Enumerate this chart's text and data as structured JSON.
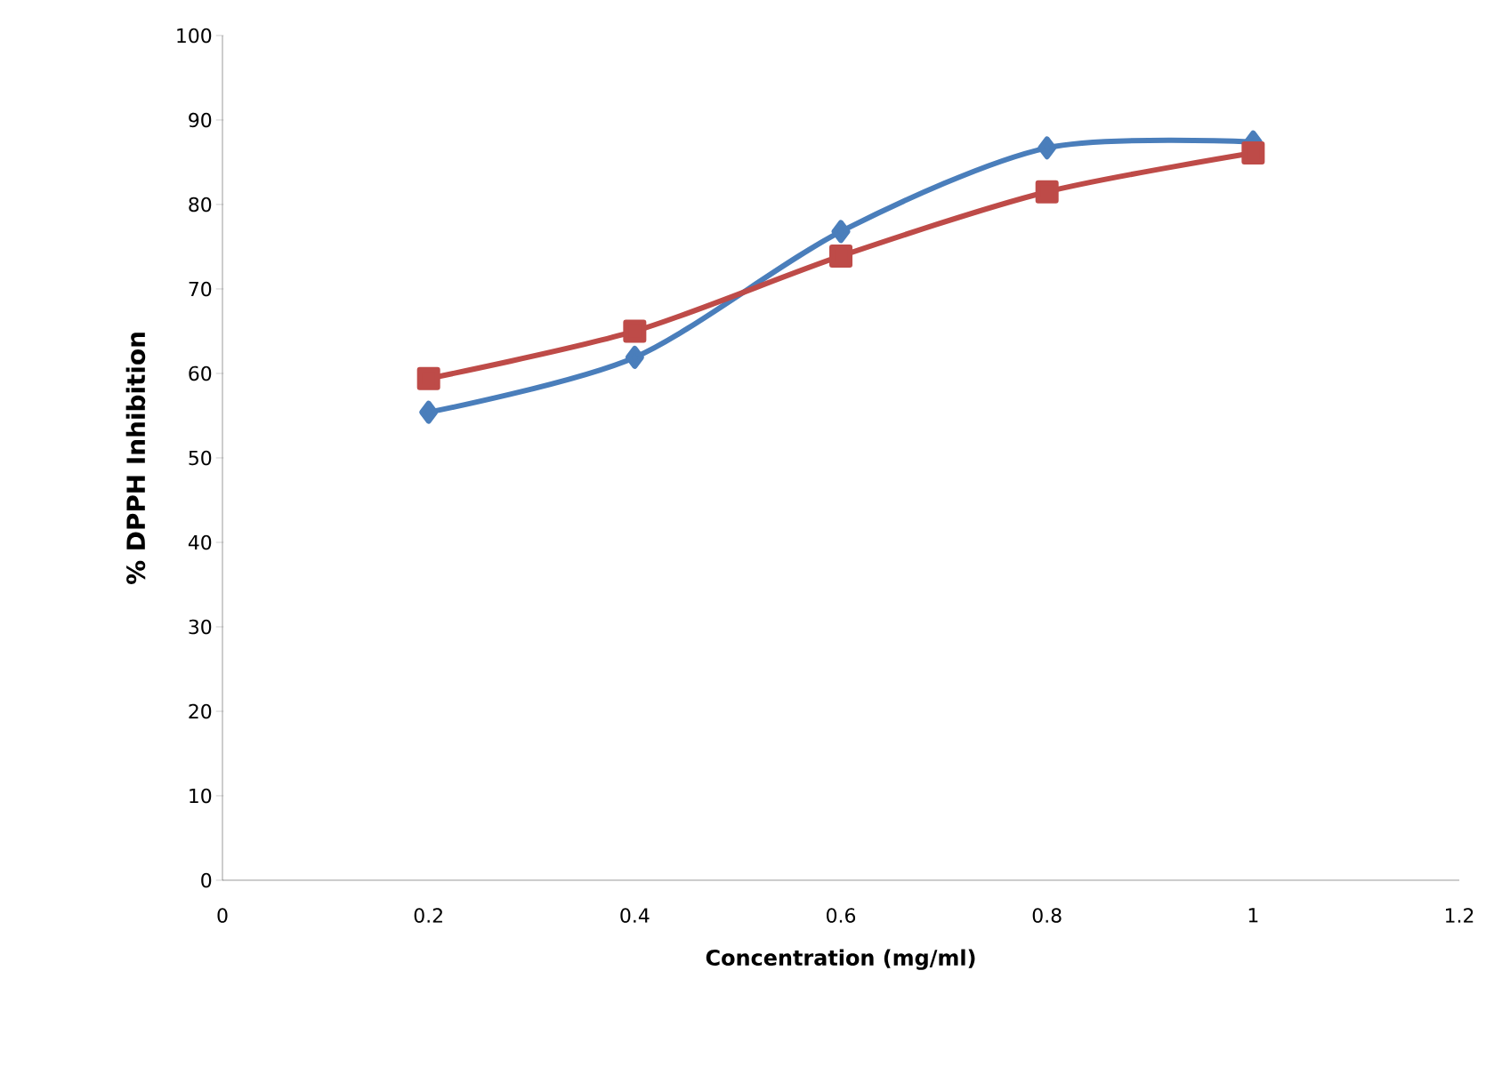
{
  "chart_data": {
    "type": "line",
    "xlabel": "Concentration (mg/ml)",
    "ylabel": "% DPPH Inhibition",
    "x": [
      0.2,
      0.4,
      0.6,
      0.8,
      1
    ],
    "series": [
      {
        "color": "#4a7ebb",
        "marker": "diamond",
        "values": [
          55.4,
          61.9,
          76.8,
          86.7,
          87.4
        ]
      },
      {
        "color": "#be4b48",
        "marker": "square",
        "values": [
          59.4,
          65,
          73.9,
          81.5,
          86.1
        ]
      }
    ],
    "xlim": [
      0,
      1.2
    ],
    "xticks": [
      0,
      0.2,
      0.4,
      0.6,
      0.8,
      1,
      1.2
    ],
    "ylim": [
      0,
      100
    ],
    "yticks": [
      0,
      10,
      20,
      30,
      40,
      50,
      60,
      70,
      80,
      90,
      100
    ],
    "line_style": "solid"
  }
}
